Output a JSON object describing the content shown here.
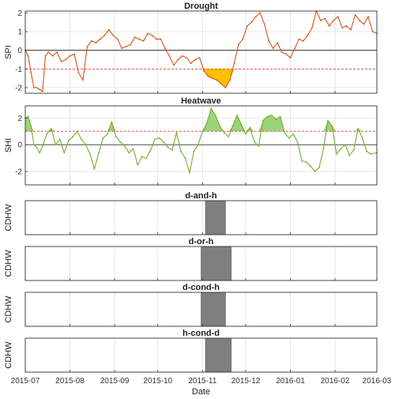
{
  "chart_data": [
    {
      "type": "line",
      "title": "Drought",
      "ylabel": "SPI",
      "ylim": [
        -2.3,
        2.1
      ],
      "yticks": [
        -2,
        -1,
        0,
        1,
        2
      ],
      "threshold": -1,
      "zero_line": 0,
      "grid": true,
      "colors": {
        "line": "#d95319",
        "fill": "#ffc000",
        "threshold": "#e83a3a"
      },
      "series": [
        {
          "x": [
            "2015-07-01",
            "2015-07-03",
            "2015-07-05",
            "2015-07-07",
            "2015-07-09",
            "2015-07-11",
            "2015-07-13",
            "2015-07-15",
            "2015-07-17",
            "2015-07-20",
            "2015-07-23",
            "2015-07-26",
            "2015-07-29",
            "2015-08-01",
            "2015-08-04",
            "2015-08-07",
            "2015-08-10",
            "2015-08-13",
            "2015-08-16",
            "2015-08-19",
            "2015-08-22",
            "2015-08-25",
            "2015-08-28",
            "2015-08-31",
            "2015-09-03",
            "2015-09-06",
            "2015-09-09",
            "2015-09-12",
            "2015-09-15",
            "2015-09-18",
            "2015-09-21",
            "2015-09-24",
            "2015-09-27",
            "2015-09-30",
            "2015-10-03",
            "2015-10-06",
            "2015-10-09",
            "2015-10-12",
            "2015-10-15",
            "2015-10-18",
            "2015-10-21",
            "2015-10-24",
            "2015-10-27",
            "2015-10-30",
            "2015-11-02",
            "2015-11-05",
            "2015-11-08",
            "2015-11-11",
            "2015-11-14",
            "2015-11-17",
            "2015-11-20",
            "2015-11-23",
            "2015-11-26",
            "2015-11-29",
            "2015-12-02",
            "2015-12-05",
            "2015-12-08",
            "2015-12-11",
            "2015-12-14",
            "2015-12-17",
            "2015-12-20",
            "2015-12-23",
            "2015-12-26",
            "2015-12-29",
            "2016-01-01",
            "2016-01-04",
            "2016-01-07",
            "2016-01-10",
            "2016-01-13",
            "2016-01-16",
            "2016-01-19",
            "2016-01-22",
            "2016-01-25",
            "2016-01-28",
            "2016-01-31",
            "2016-02-03",
            "2016-02-06",
            "2016-02-09",
            "2016-02-12",
            "2016-02-15",
            "2016-02-18",
            "2016-02-21",
            "2016-02-24",
            "2016-02-27",
            "2016-03-01"
          ],
          "values": [
            0.0,
            -0.3,
            -1.2,
            -2.0,
            -2.0,
            -2.1,
            -2.2,
            -0.3,
            -0.1,
            -0.3,
            -0.1,
            -0.6,
            -0.5,
            -0.3,
            -0.2,
            -1.2,
            -1.6,
            0.2,
            0.5,
            0.4,
            0.6,
            0.8,
            1.1,
            0.8,
            0.6,
            0.1,
            0.2,
            0.3,
            0.7,
            0.6,
            0.5,
            0.9,
            0.8,
            0.6,
            0.6,
            0.1,
            -0.3,
            -0.8,
            -0.5,
            -0.3,
            -0.4,
            -0.7,
            -0.5,
            -0.4,
            -1.1,
            -1.4,
            -1.5,
            -1.6,
            -1.8,
            -2.0,
            -1.6,
            -0.7,
            0.3,
            0.6,
            1.3,
            1.5,
            1.8,
            2.0,
            1.4,
            0.5,
            0.1,
            0.4,
            -0.1,
            -0.2,
            -0.4,
            0.1,
            0.6,
            0.5,
            0.8,
            1.2,
            2.1,
            1.6,
            1.7,
            1.3,
            1.6,
            1.8,
            1.2,
            1.3,
            1.1,
            1.9,
            1.6,
            1.4,
            1.8,
            1.0,
            0.9
          ]
        }
      ],
      "shaded_interval": [
        "2015-11-01",
        "2015-11-23"
      ]
    },
    {
      "type": "line",
      "title": "Heatwave",
      "ylabel": "SHI",
      "ylim": [
        -3,
        2.9
      ],
      "yticks": [
        -2,
        0,
        2
      ],
      "threshold": 1,
      "zero_line": 0,
      "grid": true,
      "colors": {
        "line": "#77ac30",
        "fill": "#8fcf6a",
        "threshold": "#e83a3a"
      },
      "series": [
        {
          "x": [
            "2015-07-01",
            "2015-07-03",
            "2015-07-05",
            "2015-07-07",
            "2015-07-09",
            "2015-07-11",
            "2015-07-13",
            "2015-07-16",
            "2015-07-19",
            "2015-07-22",
            "2015-07-25",
            "2015-07-28",
            "2015-07-31",
            "2015-08-03",
            "2015-08-06",
            "2015-08-09",
            "2015-08-12",
            "2015-08-15",
            "2015-08-18",
            "2015-08-21",
            "2015-08-24",
            "2015-08-27",
            "2015-08-30",
            "2015-09-02",
            "2015-09-05",
            "2015-09-08",
            "2015-09-11",
            "2015-09-14",
            "2015-09-17",
            "2015-09-20",
            "2015-09-23",
            "2015-09-26",
            "2015-09-29",
            "2015-10-02",
            "2015-10-05",
            "2015-10-08",
            "2015-10-11",
            "2015-10-14",
            "2015-10-17",
            "2015-10-20",
            "2015-10-23",
            "2015-10-26",
            "2015-10-29",
            "2015-11-01",
            "2015-11-04",
            "2015-11-07",
            "2015-11-10",
            "2015-11-13",
            "2015-11-16",
            "2015-11-19",
            "2015-11-22",
            "2015-11-25",
            "2015-11-28",
            "2015-12-01",
            "2015-12-04",
            "2015-12-07",
            "2015-12-10",
            "2015-12-13",
            "2015-12-16",
            "2015-12-19",
            "2015-12-22",
            "2015-12-25",
            "2015-12-28",
            "2015-12-31",
            "2016-01-03",
            "2016-01-06",
            "2016-01-09",
            "2016-01-12",
            "2016-01-15",
            "2016-01-18",
            "2016-01-21",
            "2016-01-24",
            "2016-01-27",
            "2016-01-30",
            "2016-02-02",
            "2016-02-05",
            "2016-02-08",
            "2016-02-11",
            "2016-02-14",
            "2016-02-17",
            "2016-02-20",
            "2016-02-23",
            "2016-02-26",
            "2016-03-01"
          ],
          "values": [
            2.0,
            2.1,
            1.4,
            0.0,
            -0.2,
            -0.6,
            -0.1,
            0.8,
            1.2,
            0.0,
            0.4,
            -0.6,
            0.3,
            0.6,
            1.0,
            0.4,
            0.0,
            -0.7,
            -1.8,
            -0.6,
            0.5,
            0.8,
            1.7,
            0.6,
            0.2,
            -0.1,
            -0.6,
            -0.3,
            -1.5,
            -0.9,
            -1.0,
            -0.4,
            0.4,
            0.5,
            0.2,
            -0.2,
            -0.4,
            0.9,
            -0.5,
            -1.0,
            -2.1,
            -0.5,
            0.0,
            1.0,
            1.6,
            2.7,
            2.2,
            1.4,
            0.9,
            0.6,
            1.4,
            2.2,
            1.5,
            0.8,
            1.3,
            0.2,
            -0.1,
            1.8,
            2.1,
            2.2,
            1.9,
            2.1,
            0.9,
            0.5,
            0.8,
            0.2,
            -1.2,
            -1.3,
            -1.6,
            -2.0,
            -1.7,
            -0.3,
            1.8,
            1.4,
            -0.7,
            -0.3,
            0.0,
            -0.8,
            -0.4,
            1.2,
            0.5,
            -0.5,
            -0.7,
            -0.6
          ]
        }
      ],
      "fill_above_threshold": true
    },
    {
      "type": "area",
      "title": "d-and-h",
      "ylabel": "CDHW",
      "color": "#7f7f7f",
      "event_interval": [
        "2015-11-03",
        "2015-11-17"
      ]
    },
    {
      "type": "area",
      "title": "d-or-h",
      "ylabel": "CDHW",
      "color": "#7f7f7f",
      "event_interval": [
        "2015-10-31",
        "2015-11-21"
      ]
    },
    {
      "type": "area",
      "title": "d-cond-h",
      "ylabel": "CDHW",
      "color": "#7f7f7f",
      "event_interval": [
        "2015-10-31",
        "2015-11-17"
      ]
    },
    {
      "type": "area",
      "title": "h-cond-d",
      "ylabel": "CDHW",
      "color": "#7f7f7f",
      "event_interval": [
        "2015-11-03",
        "2015-11-21"
      ]
    }
  ],
  "x_axis": {
    "label": "Date",
    "range": [
      "2015-07-01",
      "2016-03-01"
    ],
    "tick_labels": [
      "2015-07",
      "2015-08",
      "2015-09",
      "2015-10",
      "2015-11",
      "2015-12",
      "2016-01",
      "2016-02",
      "2016-03"
    ],
    "tick_dates": [
      "2015-07-01",
      "2015-08-01",
      "2015-09-01",
      "2015-10-01",
      "2015-11-01",
      "2015-12-01",
      "2016-01-01",
      "2016-02-01",
      "2016-03-01"
    ]
  }
}
